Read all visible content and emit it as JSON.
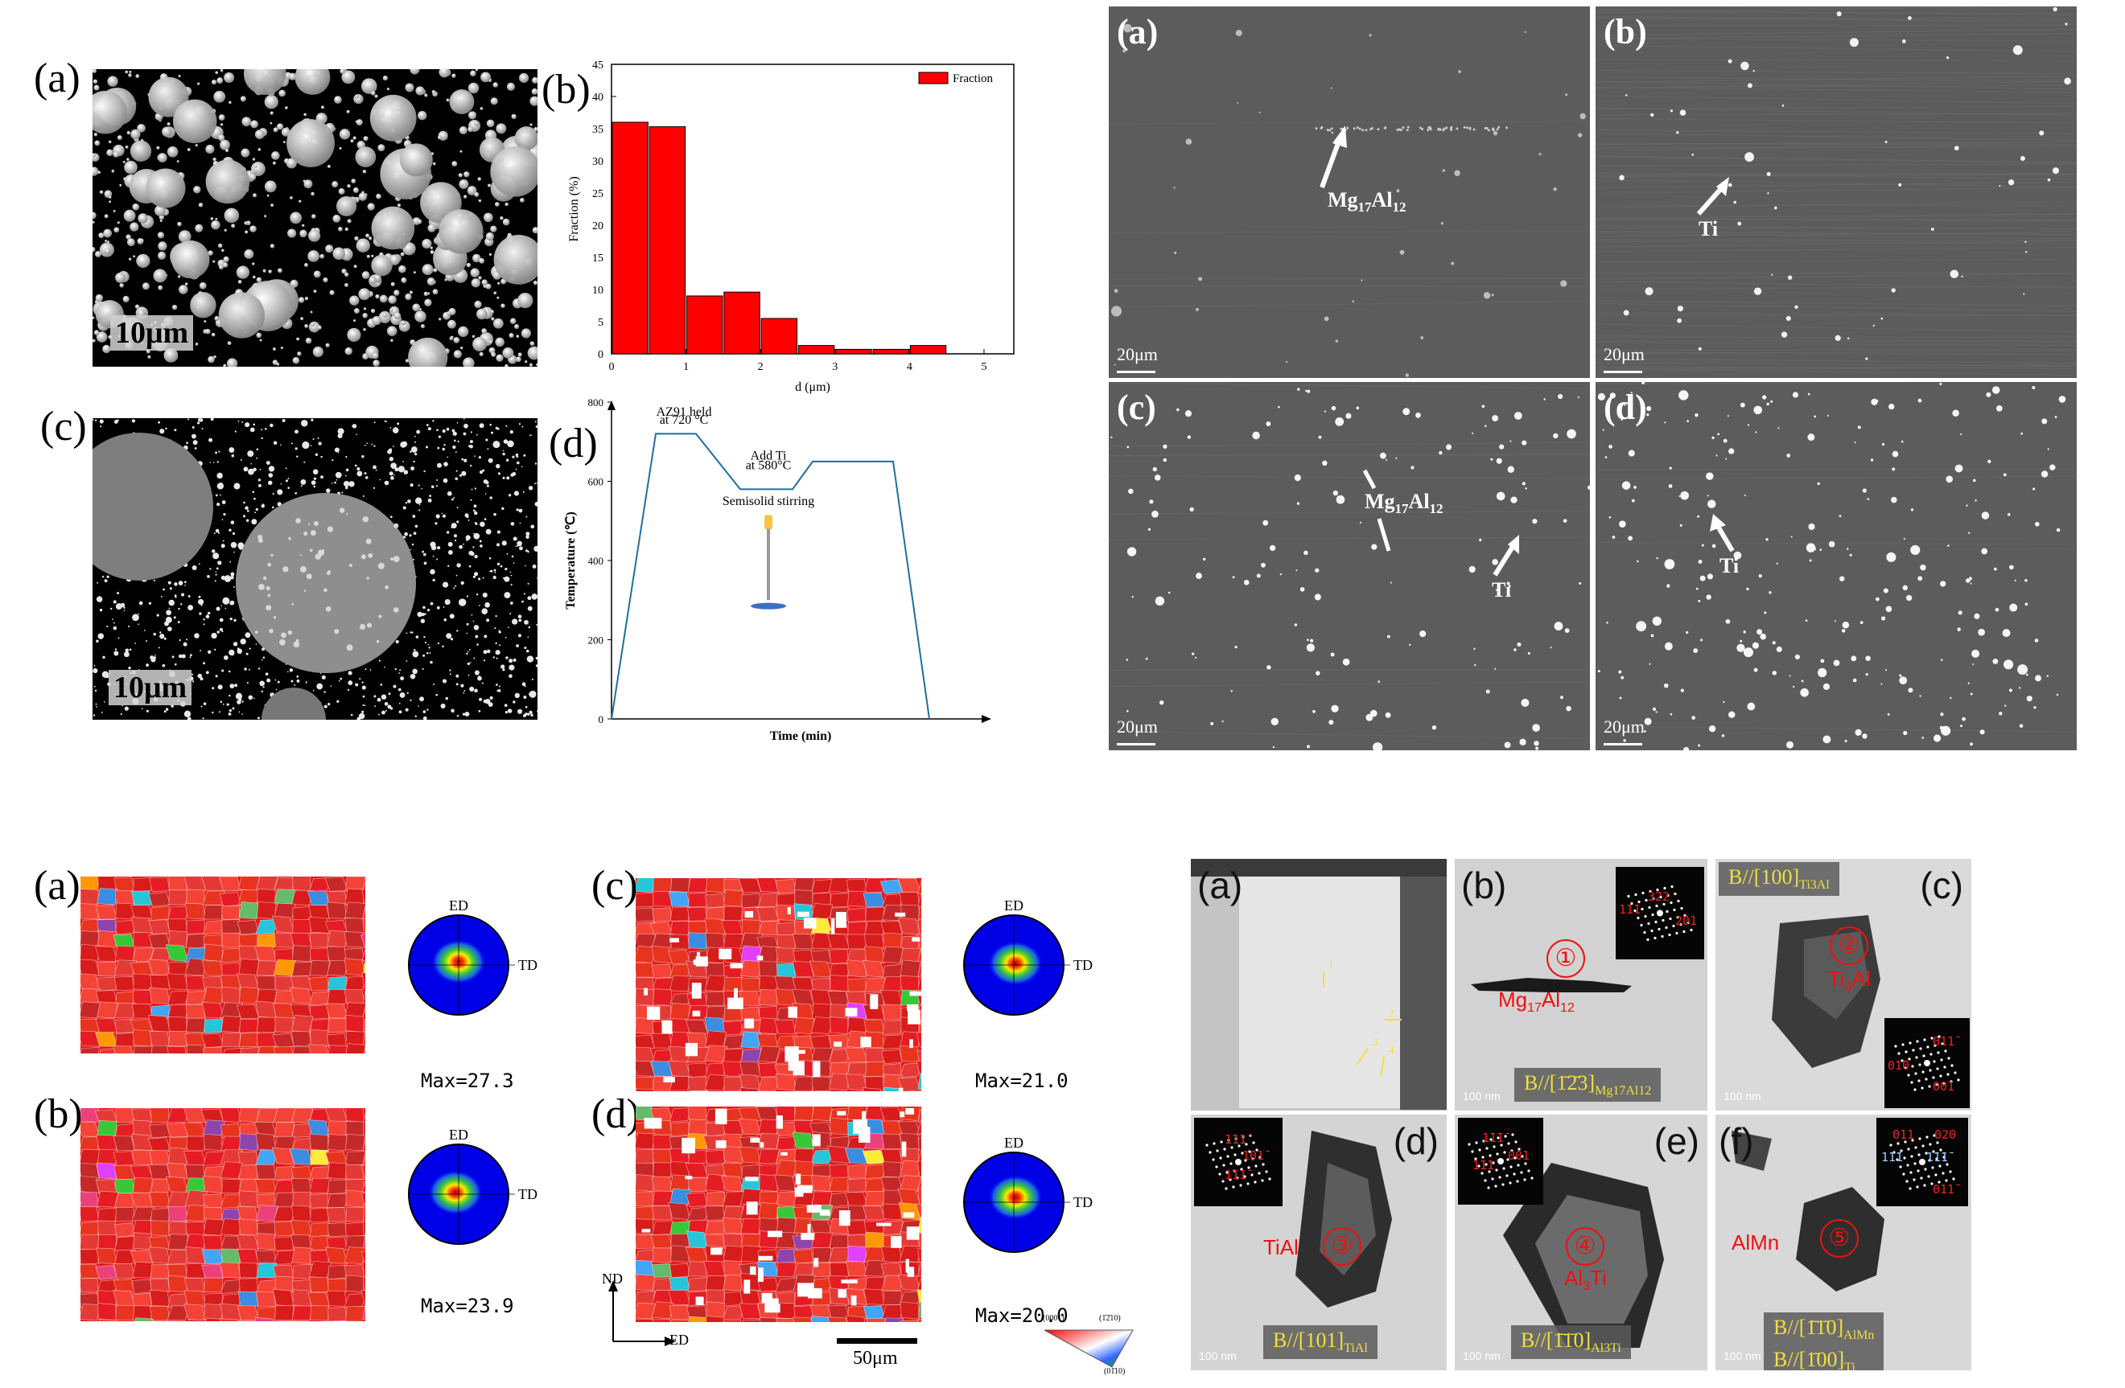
{
  "top_left": {
    "labels": {
      "a": "(a)",
      "b": "(b)",
      "c": "(c)",
      "d": "(d)"
    },
    "scale_a": "10μm",
    "scale_c": "10μm",
    "chart_data": {
      "type": "bar",
      "categories": [
        "0.25",
        "0.75",
        "1.25",
        "1.75",
        "2.25",
        "2.75",
        "3.25",
        "3.75",
        "4.25"
      ],
      "values": [
        36,
        35.3,
        9,
        9.6,
        5.5,
        1.3,
        0.7,
        0.7,
        1.3
      ],
      "xticks": [
        "0",
        "1",
        "2",
        "3",
        "4",
        "5"
      ],
      "yticks": [
        "0",
        "5",
        "10",
        "15",
        "20",
        "25",
        "30",
        "35",
        "40",
        "45"
      ],
      "xlabel": "d (μm)",
      "ylabel": "Fraction (%)",
      "legend": "Fraction",
      "ylim": [
        0,
        45
      ],
      "xlim": [
        0,
        5.4
      ],
      "bar_color": "#ff0000"
    },
    "process": {
      "yticks": [
        "0",
        "200",
        "400",
        "600",
        "800"
      ],
      "ylabel": "Temperature (℃)",
      "xlabel": "Time (min)",
      "annot1_line1": "AZ91 held",
      "annot1_line2": "at 720 °C",
      "annot2_line1": "Add Ti",
      "annot2_line2": "at 580°C",
      "annot3": "Semisolid stirring",
      "line_color": "#1f6fa0"
    }
  },
  "top_right": {
    "tags": [
      "(a)",
      "(b)",
      "(c)",
      "(d)"
    ],
    "scale": "20μm",
    "ann_mg": "Mg17Al12",
    "ann_ti": "Ti"
  },
  "bottom_left": {
    "labels": {
      "a": "(a)",
      "b": "(b)",
      "c": "(c)",
      "d": "(d)"
    },
    "pf": {
      "top": "ED",
      "right": "TD"
    },
    "max": [
      "Max=27.3",
      "Max=23.9",
      "Max=21.0",
      "Max=20.0"
    ],
    "axes": {
      "nd": "ND",
      "ed": "ED"
    },
    "scale": "50μm",
    "ipf": {
      "c1": "(0001)",
      "c2": "(1̄2̄10)",
      "c3": "(01̄10)"
    }
  },
  "bottom_right": {
    "tags": [
      "(a)",
      "(b)",
      "(c)",
      "(d)",
      "(e)",
      "(f)"
    ],
    "scale": "100 nm",
    "caps": {
      "b": "B//[1̄2̄3]Mg17Al12",
      "c": "B//[100]Ti3Al",
      "d": "B//[101]TiAl",
      "e": "B//[1̄1̄0]Al3Ti",
      "f1": "B//[1̄1̄0]AlMn",
      "f2": "B//[1̄00]Ti"
    },
    "phases": {
      "b": "Mg17Al12",
      "c": "Ti3Al",
      "d": "TiAl",
      "e": "Al3Ti",
      "f": "AlMn"
    },
    "nums": [
      "①",
      "②",
      "③",
      "④",
      "⑤"
    ],
    "arrows_a": [
      "1",
      "2",
      "3",
      "4"
    ],
    "sad": {
      "b": [
        "1̄1̄1",
        "3̄22",
        "2̄01"
      ],
      "c": [
        "011̄",
        "01̄0",
        "001"
      ],
      "d": [
        "1̄1̄1̄",
        "101̄",
        "1̄1̄1̄"
      ],
      "e": [
        "1̄1̄1̄",
        "001",
        "1̄1̄1"
      ],
      "f": [
        "011",
        "020",
        "1̄1̄1",
        "1̄1̄1̄",
        "011̄"
      ]
    }
  }
}
